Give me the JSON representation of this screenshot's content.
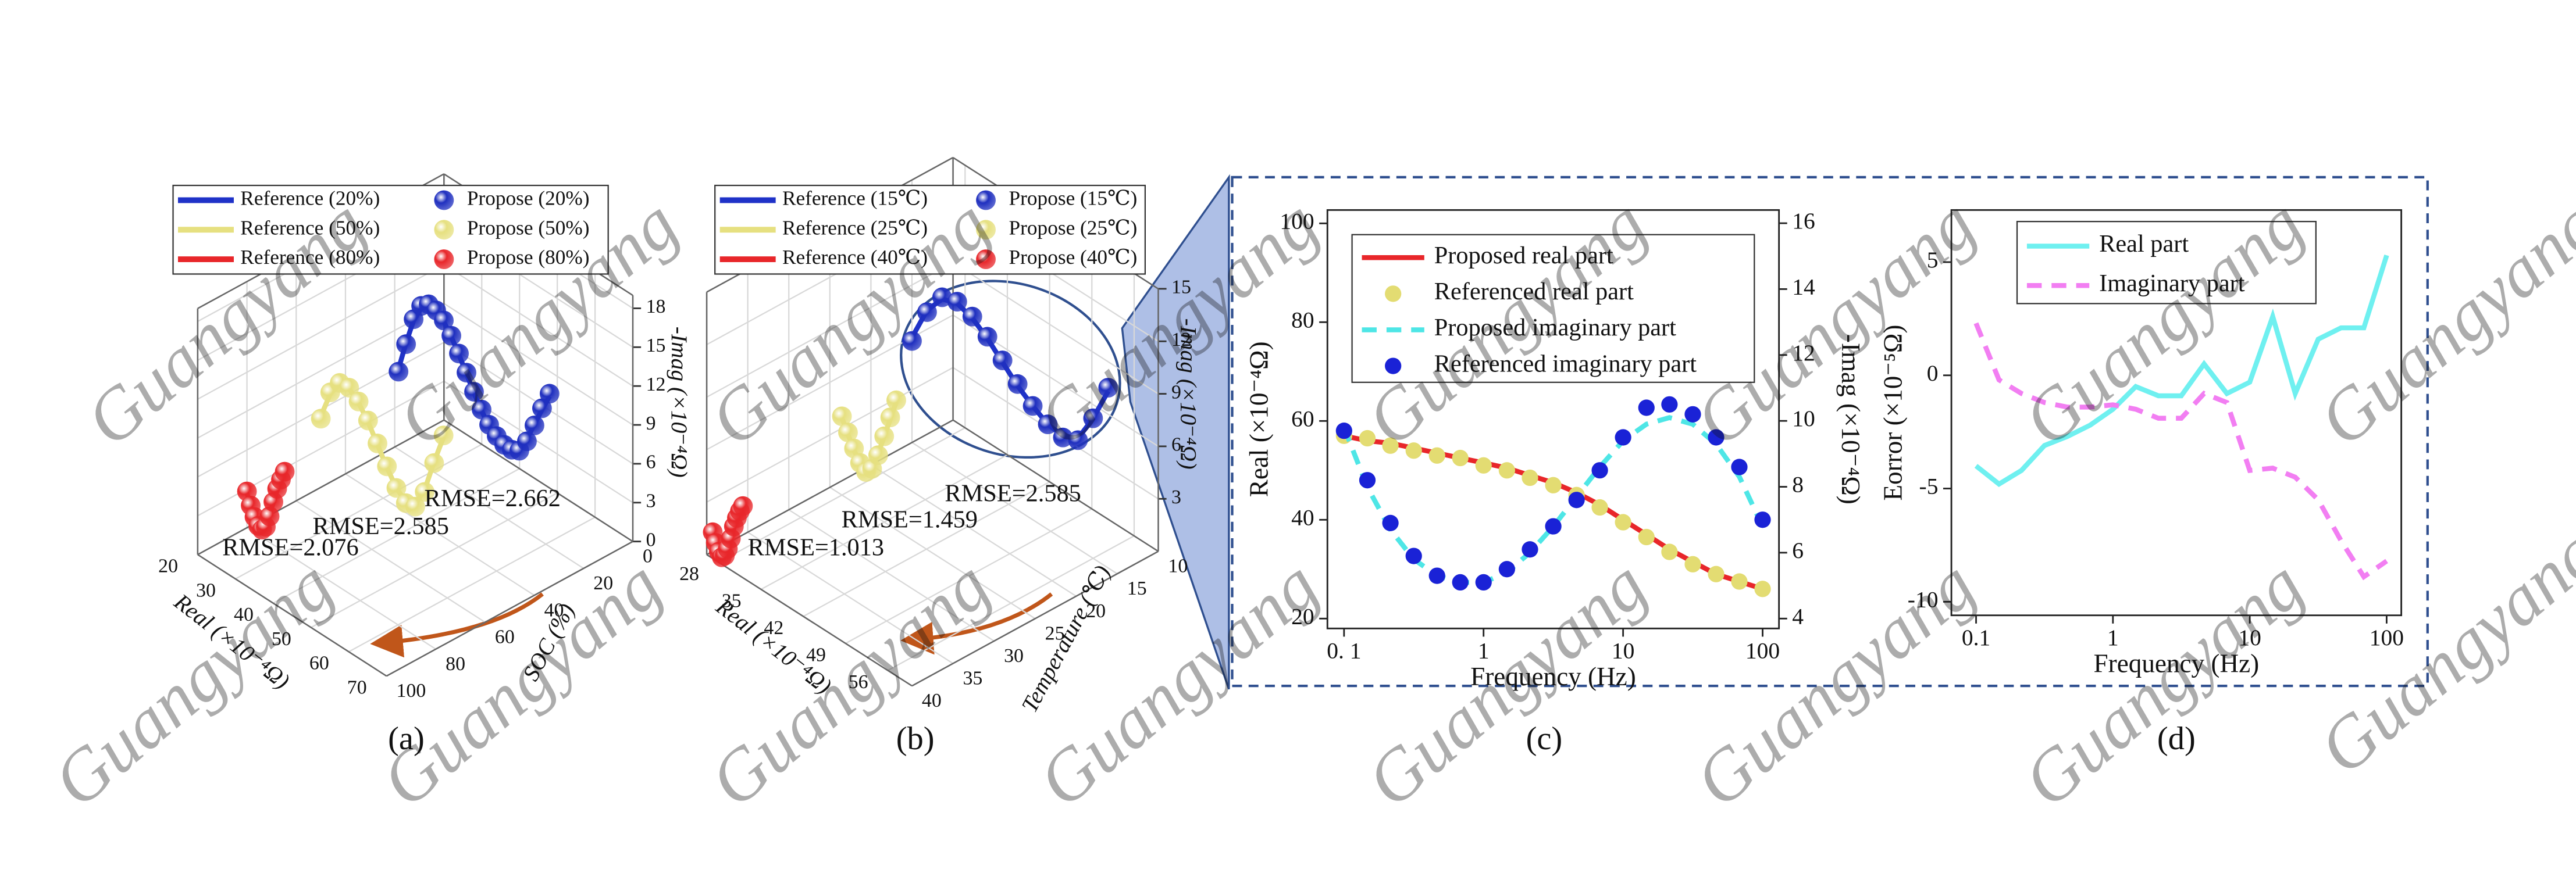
{
  "watermark": "Guangyang",
  "chart_data": [
    {
      "type": "scatter3d",
      "label": "(a)",
      "xlabel": "Real (×10⁻⁴Ω)",
      "zlabel": "SOC (%)",
      "ylabel": "-Imag (×10⁻⁴Ω)",
      "xlim": [
        20,
        70
      ],
      "xticks": [
        20,
        30,
        40,
        50,
        60,
        70
      ],
      "zlim": [
        100,
        0
      ],
      "zticks": [
        100,
        80,
        60,
        40,
        20,
        0
      ],
      "ylim": [
        0,
        19
      ],
      "yticks": [
        0,
        3,
        6,
        9,
        12,
        15,
        18
      ],
      "series": [
        {
          "name": "Reference (20%)",
          "color": "#1f32c8",
          "mode": "line",
          "z": 20,
          "x": [
            21,
            23,
            25,
            27,
            29,
            31,
            33,
            35,
            37,
            39,
            41,
            43,
            45,
            47,
            49,
            51,
            53,
            55,
            57,
            59,
            61
          ],
          "values": [
            6.2,
            8.6,
            10.7,
            12.0,
            12.6,
            12.6,
            12.1,
            11.3,
            10.3,
            9.2,
            8.1,
            7.1,
            6.3,
            5.8,
            5.6,
            5.7,
            6.1,
            7.2,
            8.7,
            10.2,
            11.6
          ]
        },
        {
          "name": "Propose (20%)",
          "color": "#1f2fbf",
          "mode": "markers",
          "z": 20,
          "x": [
            21,
            23,
            25,
            27,
            29,
            31,
            33,
            35,
            37,
            39,
            41,
            43,
            45,
            47,
            49,
            51,
            53,
            55,
            57,
            59,
            61
          ],
          "values": [
            6,
            8.5,
            10.8,
            12.2,
            12.7,
            12.6,
            12.2,
            11.4,
            10.4,
            9.3,
            8.2,
            7.2,
            6.4,
            5.9,
            5.6,
            5.6,
            5.9,
            7.0,
            8.6,
            10.3,
            11.8
          ]
        },
        {
          "name": "Reference (50%)",
          "color": "#e6e080",
          "mode": "line",
          "z": 50,
          "x": [
            20,
            22.5,
            25,
            27.5,
            30,
            32.5,
            35,
            37.5,
            40,
            42.5,
            45,
            47.5,
            50,
            52.5
          ],
          "values": [
            5.5,
            7.7,
            8.9,
            9.0,
            8.4,
            7.4,
            6.1,
            4.8,
            3.7,
            3.1,
            3.4,
            5.0,
            7.6,
            10.0
          ]
        },
        {
          "name": "Propose (50%)",
          "color": "#e6e080",
          "mode": "markers",
          "z": 50,
          "x": [
            20,
            22.5,
            25,
            27.5,
            30,
            32.5,
            35,
            37.5,
            40,
            42.5,
            45,
            47.5,
            50,
            52.5
          ],
          "values": [
            5.3,
            7.8,
            9.0,
            9.1,
            8.5,
            7.5,
            6.2,
            4.9,
            3.7,
            3.0,
            3.2,
            4.8,
            7.5,
            10.1
          ]
        },
        {
          "name": "Reference (80%)",
          "color": "#e8262a",
          "mode": "line",
          "z": 80,
          "x": [
            20,
            21,
            22,
            23,
            24,
            25,
            26,
            27,
            28,
            29,
            30
          ],
          "values": [
            2.7,
            1.8,
            1.2,
            0.8,
            0.7,
            1.1,
            2.1,
            3.3,
            4.4,
            5.3,
            6.1
          ]
        },
        {
          "name": "Propose (80%)",
          "color": "#e8262a",
          "mode": "markers",
          "z": 80,
          "x": [
            20,
            21,
            22,
            23,
            24,
            25,
            26,
            27,
            28,
            29,
            30
          ],
          "values": [
            2.8,
            1.9,
            1.2,
            0.7,
            0.6,
            1.0,
            2.0,
            3.3,
            4.5,
            5.4,
            6.2
          ]
        }
      ],
      "annotations": [
        {
          "text": "RMSE=2.076",
          "color": "#e8262a"
        },
        {
          "text": "RMSE=2.585",
          "color": "#d2c95a"
        },
        {
          "text": "RMSE=2.662",
          "color": "#8080e8"
        }
      ]
    },
    {
      "type": "scatter3d",
      "label": "(b)",
      "xlabel": "Real (×10⁻⁴Ω)",
      "zlabel": "Temperature (℃)",
      "ylabel": "-Imag (×10⁻⁴Ω)",
      "xlim": [
        26,
        60
      ],
      "xticks": [
        28,
        35,
        42,
        49,
        56
      ],
      "zlim": [
        40,
        10
      ],
      "zticks": [
        40,
        35,
        30,
        25,
        20,
        15,
        10
      ],
      "ylim": [
        0,
        15
      ],
      "yticks": [
        3,
        6,
        9,
        12,
        15
      ],
      "series": [
        {
          "name": "Reference (15℃)",
          "color": "#1f32c8",
          "mode": "line",
          "z": 15,
          "x": [
            26,
            28.5,
            31,
            33.5,
            36,
            38.5,
            41,
            43.5,
            46,
            48.5,
            51,
            53.5,
            56,
            58.5
          ],
          "values": [
            6.0,
            8.1,
            9.3,
            9.6,
            9.3,
            8.7,
            7.9,
            7.1,
            6.5,
            6.0,
            5.9,
            6.3,
            8.0,
            10.1
          ]
        },
        {
          "name": "Propose (15℃)",
          "color": "#1f2fbf",
          "mode": "markers",
          "z": 15,
          "x": [
            26,
            28.5,
            31,
            33.5,
            36,
            38.5,
            41,
            43.5,
            46,
            48.5,
            51,
            53.5,
            56,
            58.5
          ],
          "values": [
            5.8,
            8.0,
            9.4,
            9.7,
            9.4,
            8.8,
            8.0,
            7.2,
            6.5,
            6.0,
            5.8,
            6.2,
            8.0,
            10.3
          ]
        },
        {
          "name": "Reference (25℃)",
          "color": "#e6e080",
          "mode": "line",
          "z": 25,
          "x": [
            28,
            29,
            30,
            31,
            32,
            33,
            34,
            35,
            36,
            37
          ],
          "values": [
            4.4,
            3.7,
            3.0,
            2.5,
            2.3,
            2.7,
            3.7,
            4.9,
            6.1,
            7.3
          ]
        },
        {
          "name": "Propose (25℃)",
          "color": "#e6e080",
          "mode": "markers",
          "z": 25,
          "x": [
            28,
            29,
            30,
            31,
            32,
            33,
            34,
            35,
            36,
            37
          ],
          "values": [
            4.5,
            3.8,
            3.1,
            2.5,
            2.2,
            2.6,
            3.6,
            4.9,
            6.2,
            7.4
          ]
        },
        {
          "name": "Reference (40℃)",
          "color": "#e8262a",
          "mode": "line",
          "z": 40,
          "x": [
            27,
            27.5,
            28,
            28.5,
            29,
            29.5,
            30,
            30.5,
            31,
            31.5,
            32
          ],
          "values": [
            1.4,
            1.0,
            0.6,
            0.5,
            0.7,
            1.1,
            1.8,
            2.5,
            3.1,
            3.6,
            4.0
          ]
        },
        {
          "name": "Propose (40℃)",
          "color": "#e8262a",
          "mode": "markers",
          "z": 40,
          "x": [
            27,
            27.5,
            28,
            28.5,
            29,
            29.5,
            30,
            30.5,
            31,
            31.5,
            32
          ],
          "values": [
            1.5,
            1.0,
            0.6,
            0.4,
            0.6,
            1.1,
            1.8,
            2.6,
            3.2,
            3.7,
            4.1
          ]
        }
      ],
      "annotations": [
        {
          "text": "RMSE=1.013",
          "color": "#e8262a"
        },
        {
          "text": "RMSE=1.459",
          "color": "#d2c95a"
        },
        {
          "text": "RMSE=2.585",
          "color": "#8080e8"
        }
      ]
    },
    {
      "type": "line",
      "label": "(c)",
      "xlabel": "Frequency (Hz)",
      "ylabel": "Real (×10⁻⁴Ω)",
      "y2label": "-Imag (×10⁻⁴Ω)",
      "xscale": "log",
      "xlim": [
        0.076,
        131
      ],
      "xticks": [
        {
          "value": 0.1,
          "label": "0. 1"
        },
        1,
        10,
        100
      ],
      "ylim": [
        18,
        102.7
      ],
      "yticks": [
        20,
        40,
        60,
        80,
        100
      ],
      "y2lim": [
        3.7,
        16.4
      ],
      "y2ticks": [
        4,
        6,
        8,
        10,
        12,
        14,
        16
      ],
      "x": [
        0.1,
        0.147,
        0.215,
        0.316,
        0.464,
        0.681,
        1,
        1.47,
        2.15,
        3.16,
        4.64,
        6.81,
        10,
        14.7,
        21.5,
        31.6,
        46.4,
        68.1,
        100
      ],
      "series": [
        {
          "name": "Proposed real part",
          "color": "#e8262a",
          "style": "line",
          "values": [
            57,
            56,
            55.5,
            54.5,
            53.5,
            52.5,
            51.5,
            50.5,
            49,
            47.5,
            45.5,
            43,
            40,
            37,
            34,
            31.5,
            29,
            27.5,
            26
          ]
        },
        {
          "name": "Referenced real part",
          "color": "#e3dc72",
          "style": "markers",
          "values": [
            57,
            56.5,
            55,
            54,
            53,
            52.5,
            51,
            50,
            48.5,
            47,
            45,
            42.5,
            39.5,
            36.5,
            33.5,
            31,
            29,
            27.5,
            26
          ]
        },
        {
          "name": "Proposed imaginary part",
          "color": "#4ee6e6",
          "style": "dashed",
          "axis": "y2",
          "values": [
            9.8,
            8.0,
            6.7,
            5.8,
            5.3,
            5.1,
            5.1,
            5.4,
            6.0,
            6.8,
            7.7,
            8.6,
            9.4,
            9.9,
            10.1,
            9.9,
            9.3,
            8.3,
            6.8
          ]
        },
        {
          "name": "Referenced imaginary part",
          "color": "#1a22d6",
          "style": "markers",
          "axis": "y2",
          "values": [
            9.7,
            8.2,
            6.9,
            5.9,
            5.3,
            5.1,
            5.1,
            5.5,
            6.1,
            6.8,
            7.6,
            8.5,
            9.5,
            10.4,
            10.5,
            10.2,
            9.5,
            8.6,
            7.0
          ]
        }
      ]
    },
    {
      "type": "line",
      "label": "(d)",
      "xlabel": "Frequency (Hz)",
      "ylabel": "Eorror (×10⁻⁵Ω)",
      "xscale": "log",
      "xlim": [
        0.066,
        128
      ],
      "xticks": [
        0.1,
        1,
        10,
        100
      ],
      "ylim": [
        -10.6,
        7.3
      ],
      "yticks": [
        -10,
        -5,
        0,
        5
      ],
      "x": [
        0.1,
        0.147,
        0.215,
        0.316,
        0.464,
        0.681,
        1,
        1.47,
        2.15,
        3.16,
        4.64,
        6.81,
        10,
        14.7,
        21.5,
        31.6,
        46.4,
        68.1,
        100
      ],
      "series": [
        {
          "name": "Real part",
          "color": "#6ff0f0",
          "style": "line",
          "values": [
            -4,
            -4.8,
            -4.2,
            -3.1,
            -2.7,
            -2.2,
            -1.5,
            -0.5,
            -0.9,
            -0.9,
            0.5,
            -0.8,
            -0.3,
            2.6,
            -0.8,
            1.6,
            2.1,
            2.1,
            5.3
          ]
        },
        {
          "name": "Imaginary part",
          "color": "#f27ef2",
          "style": "dashed",
          "values": [
            2.3,
            -0.2,
            -0.8,
            -1.2,
            -1.4,
            -1.4,
            -1.3,
            -1.5,
            -1.9,
            -1.9,
            -0.8,
            -1.2,
            -4.2,
            -4.1,
            -4.5,
            -5.5,
            -7.3,
            -8.9,
            -8.2
          ]
        }
      ]
    }
  ]
}
